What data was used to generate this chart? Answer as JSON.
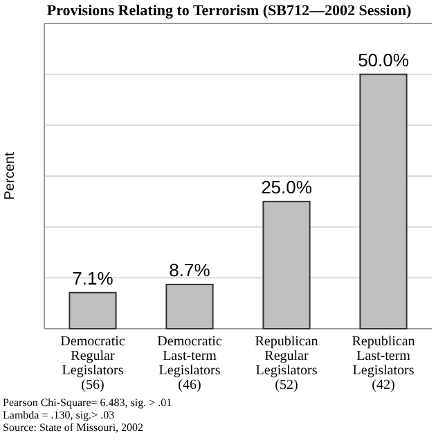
{
  "chart_data": {
    "type": "bar",
    "title": "Provisions Relating to Terrorism (SB712—2002 Session)",
    "ylabel": "Percent",
    "categories": [
      "Democratic\nRegular\nLegislators\n(56)",
      "Democratic\nLast-term\nLegislators\n(46)",
      "Republican\nRegular\nLegislators\n(52)",
      "Republican\nLast-term\nLegislators\n(42)"
    ],
    "values": [
      7.1,
      8.7,
      25.0,
      50.0
    ],
    "value_labels": [
      "7.1%",
      "8.7%",
      "25.0%",
      "50.0%"
    ],
    "color": "#c0c0c0",
    "ylim": [
      0,
      60
    ],
    "yticks": [
      {
        "value": 0,
        "label": null
      },
      {
        "value": 10,
        "label": null
      },
      {
        "value": 20,
        "label": null
      },
      {
        "value": 30,
        "label": null
      },
      {
        "value": 40,
        "label": null
      },
      {
        "value": 50,
        "label": null
      },
      {
        "value": 60,
        "label": null
      }
    ],
    "grid": "y",
    "annotations": [
      "Pearson Chi-Square= 6.483, sig. > .01",
      "Lambda = .130, sig.> .03",
      "Source: State of Missouri, 2002"
    ]
  }
}
